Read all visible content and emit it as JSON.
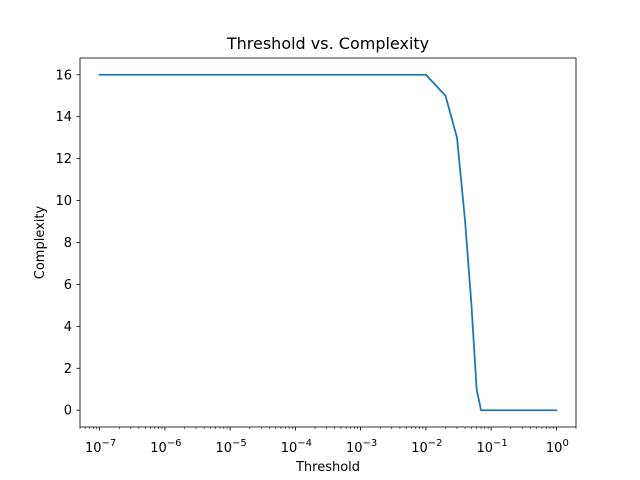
{
  "chart_data": {
    "type": "line",
    "title": "Threshold vs. Complexity",
    "xlabel": "Threshold",
    "ylabel": "Complexity",
    "xscale": "log",
    "xlim": [
      5e-08,
      2
    ],
    "ylim": [
      -0.8,
      16.8
    ],
    "grid": false,
    "x_ticks": [
      {
        "value": 1e-07,
        "base": "10",
        "exp": "−7"
      },
      {
        "value": 1e-06,
        "base": "10",
        "exp": "−6"
      },
      {
        "value": 1e-05,
        "base": "10",
        "exp": "−5"
      },
      {
        "value": 0.0001,
        "base": "10",
        "exp": "−4"
      },
      {
        "value": 0.001,
        "base": "10",
        "exp": "−3"
      },
      {
        "value": 0.01,
        "base": "10",
        "exp": "−2"
      },
      {
        "value": 0.1,
        "base": "10",
        "exp": "−1"
      },
      {
        "value": 1,
        "base": "10",
        "exp": "0"
      }
    ],
    "y_ticks": [
      0,
      2,
      4,
      6,
      8,
      10,
      12,
      14,
      16
    ],
    "series": [
      {
        "color": "#1f77b4",
        "x": [
          1e-07,
          0.01,
          0.02,
          0.03,
          0.04,
          0.05,
          0.06,
          0.07,
          0.1,
          1
        ],
        "y": [
          16,
          16,
          15,
          13,
          9,
          5,
          1,
          0,
          0,
          0
        ]
      }
    ]
  }
}
